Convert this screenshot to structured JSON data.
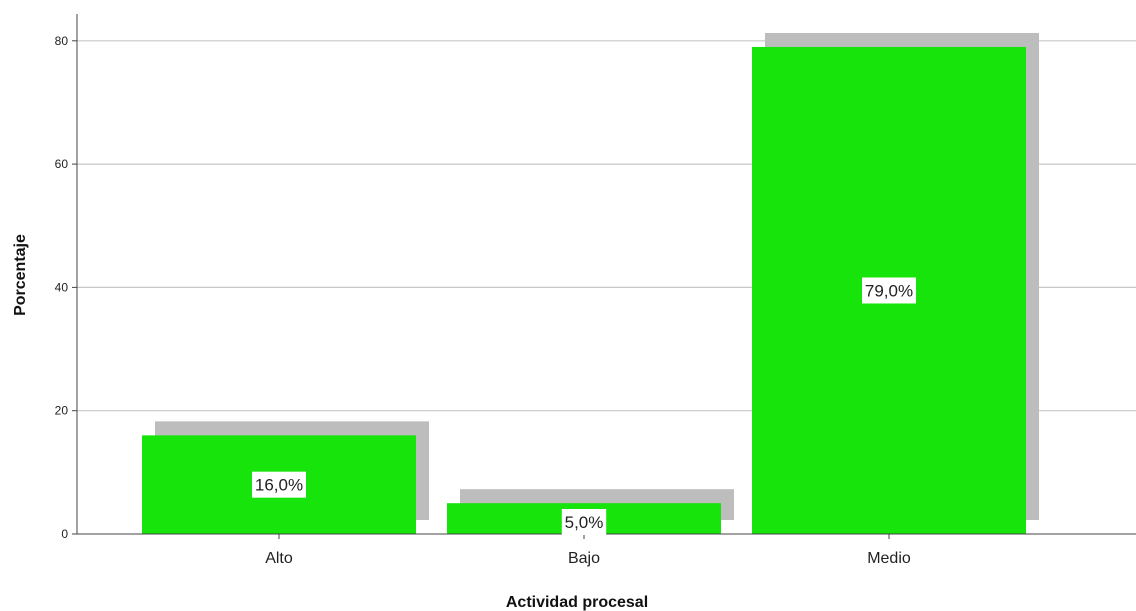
{
  "chart_data": {
    "type": "bar",
    "categories": [
      "Alto",
      "Bajo",
      "Medio"
    ],
    "values": [
      16.0,
      5.0,
      79.0
    ],
    "data_labels": [
      "16,0%",
      "5,0%",
      "79,0%"
    ],
    "title": "",
    "xlabel": "Actividad procesal",
    "ylabel": "Porcentaje",
    "ylim": [
      0,
      84
    ],
    "yticks": [
      0,
      20,
      40,
      60,
      80
    ],
    "ytick_labels": [
      "0",
      "20",
      "40",
      "60",
      "80"
    ],
    "grid": true,
    "legend": "none",
    "bar_color": "#16e40b",
    "shadow_color": "#bdbdbd",
    "gridline_color": "#c8c8c8",
    "axis_color": "#444444"
  }
}
